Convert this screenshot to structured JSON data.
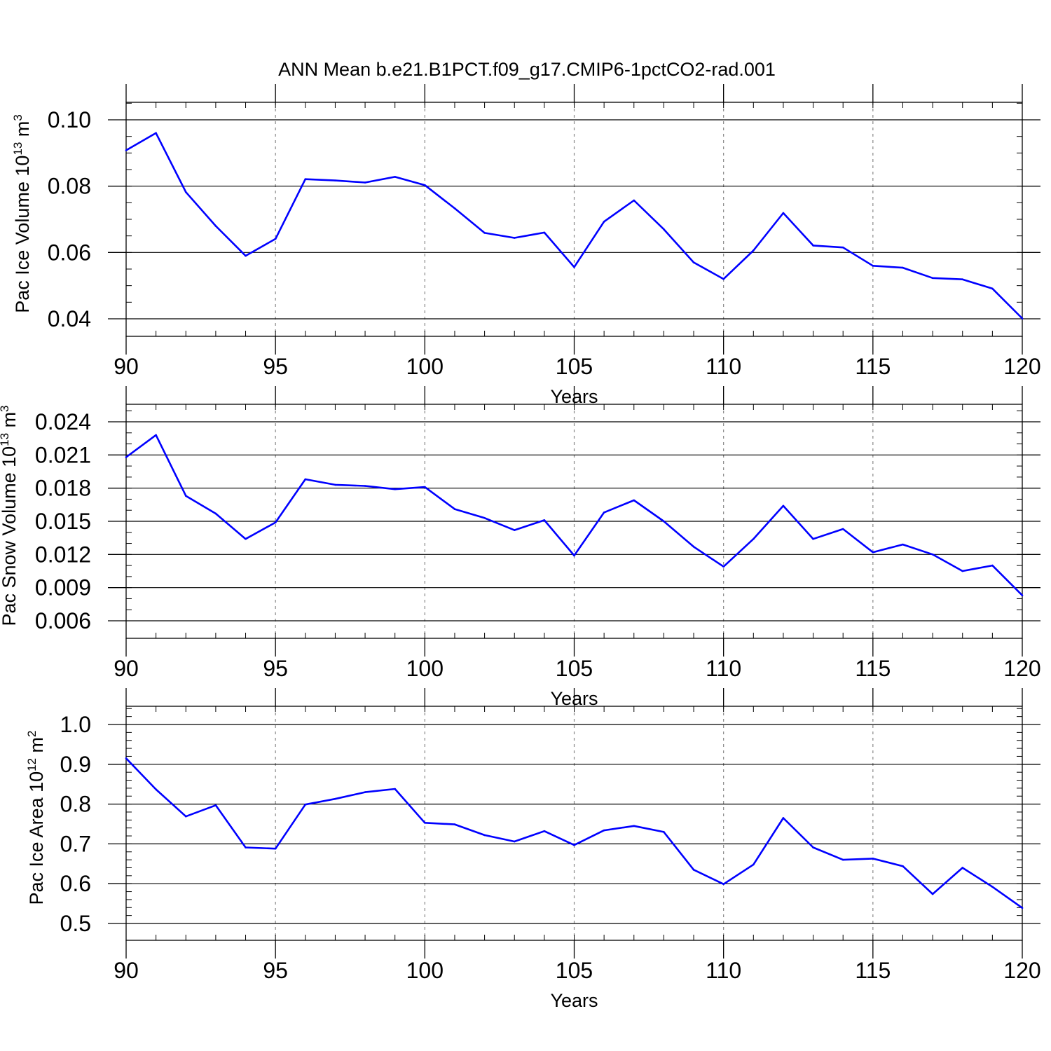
{
  "title": "ANN Mean b.e21.B1PCT.f09_g17.CMIP6-1pctCO2-rad.001",
  "colors": {
    "line": "#0000ff",
    "axis": "#000000",
    "grid": "#888888"
  },
  "chart_data": [
    {
      "type": "line",
      "ylabel_main": "Pac Ice Volume 10",
      "ylabel_exp": "13",
      "ylabel_unit": " m",
      "ylabel_unit_exp": "3",
      "xlabel": "Years",
      "xlim": [
        90,
        120
      ],
      "ylim": [
        0.04,
        0.104
      ],
      "xticks": [
        "90",
        "95",
        "100",
        "105",
        "110",
        "115",
        "120"
      ],
      "yticks": [
        "0.04",
        "0.06",
        "0.08",
        "0.10"
      ],
      "grid": "vertical dashed at major x ticks",
      "x": [
        90,
        91,
        92,
        93,
        94,
        95,
        96,
        97,
        98,
        99,
        100,
        101,
        102,
        103,
        104,
        105,
        106,
        107,
        108,
        109,
        110,
        111,
        112,
        113,
        114,
        115,
        116,
        117,
        118,
        119,
        120
      ],
      "values": [
        0.0908,
        0.096,
        0.0782,
        0.068,
        0.059,
        0.0641,
        0.0821,
        0.0817,
        0.0811,
        0.0828,
        0.0803,
        0.0733,
        0.0659,
        0.0644,
        0.066,
        0.0556,
        0.0693,
        0.0757,
        0.067,
        0.057,
        0.052,
        0.0606,
        0.0719,
        0.0621,
        0.0615,
        0.056,
        0.0554,
        0.0523,
        0.0519,
        0.0491,
        0.0401
      ]
    },
    {
      "type": "line",
      "ylabel_main": "Pac Snow Volume 10",
      "ylabel_exp": "13",
      "ylabel_unit": " m",
      "ylabel_unit_exp": "3",
      "xlabel": "Years",
      "xlim": [
        90,
        120
      ],
      "ylim": [
        0.006,
        0.0256
      ],
      "xticks": [
        "90",
        "95",
        "100",
        "105",
        "110",
        "115",
        "120"
      ],
      "yticks": [
        "0.006",
        "0.009",
        "0.012",
        "0.015",
        "0.018",
        "0.021",
        "0.024"
      ],
      "grid": "vertical dashed at major x ticks",
      "x": [
        90,
        91,
        92,
        93,
        94,
        95,
        96,
        97,
        98,
        99,
        100,
        101,
        102,
        103,
        104,
        105,
        106,
        107,
        108,
        109,
        110,
        111,
        112,
        113,
        114,
        115,
        116,
        117,
        118,
        119,
        120
      ],
      "values": [
        0.0208,
        0.0228,
        0.0173,
        0.0157,
        0.0134,
        0.0149,
        0.0188,
        0.0183,
        0.0182,
        0.0179,
        0.0181,
        0.0161,
        0.0153,
        0.0142,
        0.0151,
        0.0119,
        0.0158,
        0.0169,
        0.015,
        0.0127,
        0.0109,
        0.0134,
        0.0164,
        0.0134,
        0.0143,
        0.0122,
        0.0129,
        0.012,
        0.0105,
        0.011,
        0.0083
      ]
    },
    {
      "type": "line",
      "ylabel_main": "Pac Ice Area 10",
      "ylabel_exp": "12",
      "ylabel_unit": " m",
      "ylabel_unit_exp": "2",
      "xlabel": "Years",
      "xlim": [
        90,
        120
      ],
      "ylim": [
        0.5,
        1.045
      ],
      "xticks": [
        "90",
        "95",
        "100",
        "105",
        "110",
        "115",
        "120"
      ],
      "yticks": [
        "0.5",
        "0.6",
        "0.7",
        "0.8",
        "0.9",
        "1.0"
      ],
      "grid": "vertical dashed at major x ticks",
      "x": [
        90,
        91,
        92,
        93,
        94,
        95,
        96,
        97,
        98,
        99,
        100,
        101,
        102,
        103,
        104,
        105,
        106,
        107,
        108,
        109,
        110,
        111,
        112,
        113,
        114,
        115,
        116,
        117,
        118,
        119,
        120
      ],
      "values": [
        0.915,
        0.837,
        0.769,
        0.797,
        0.691,
        0.688,
        0.799,
        0.813,
        0.83,
        0.838,
        0.753,
        0.749,
        0.722,
        0.706,
        0.732,
        0.697,
        0.734,
        0.745,
        0.73,
        0.635,
        0.599,
        0.648,
        0.765,
        0.691,
        0.66,
        0.663,
        0.644,
        0.574,
        0.64,
        0.592,
        0.539
      ]
    }
  ]
}
